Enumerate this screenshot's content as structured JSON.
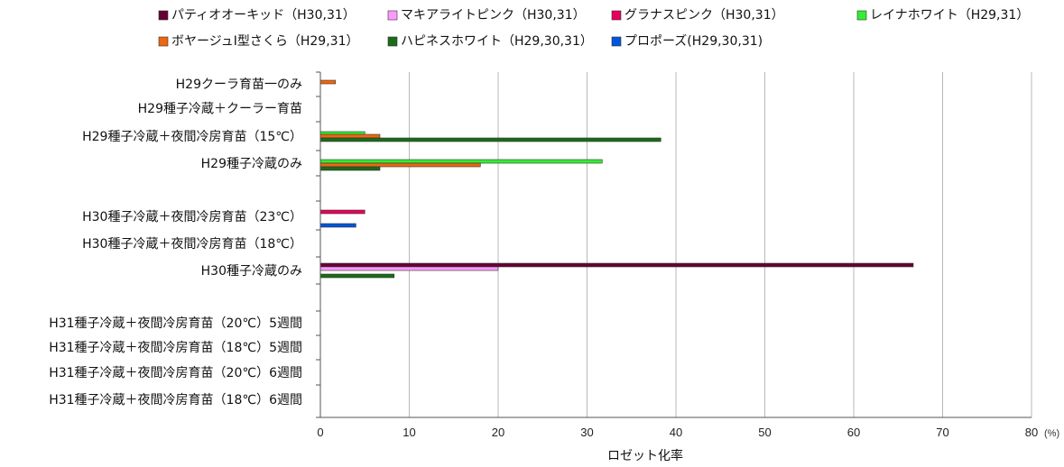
{
  "chart_data": {
    "type": "bar",
    "orientation": "horizontal",
    "categories": [
      "H29クーラ育苗一のみ",
      "H29種子冷蔵＋クーラー育苗",
      "H29種子冷蔵＋夜間冷房育苗（15℃）",
      "H29種子冷蔵のみ",
      "",
      "H30種子冷蔵＋夜間冷房育苗（23℃）",
      "H30種子冷蔵＋夜間冷房育苗（18℃）",
      "H30種子冷蔵のみ",
      "",
      "H31種子冷蔵＋夜間冷房育苗（20℃）5週間",
      "H31種子冷蔵＋夜間冷房育苗（18℃）5週間",
      "H31種子冷蔵＋夜間冷房育苗（20℃）6週間",
      "H31種子冷蔵＋夜間冷房育苗（18℃）6週間"
    ],
    "series": [
      {
        "name": "パティオオーキッド（H30,31）",
        "color": "#660033",
        "values": [
          null,
          null,
          null,
          null,
          null,
          0,
          0,
          66.7,
          null,
          0,
          0,
          0,
          0
        ]
      },
      {
        "name": "マキアライトピンク（H30,31）",
        "color": "#ff99ff",
        "values": [
          null,
          null,
          null,
          null,
          null,
          0,
          0,
          20.0,
          null,
          0,
          0,
          0,
          0
        ]
      },
      {
        "name": "グラナスピンク（H30,31）",
        "color": "#e8005a",
        "values": [
          null,
          null,
          null,
          null,
          null,
          5.0,
          0,
          0,
          null,
          0,
          0,
          0,
          0
        ]
      },
      {
        "name": "レイナホワイト（H29,31）",
        "color": "#33ee33",
        "values": [
          0,
          0,
          5.0,
          31.7,
          null,
          null,
          null,
          null,
          null,
          0,
          0,
          0,
          0
        ]
      },
      {
        "name": "ボヤージュⅠ型さくら（H29,31）",
        "color": "#ee6611",
        "values": [
          1.7,
          0,
          6.7,
          18.0,
          null,
          null,
          null,
          null,
          null,
          0,
          0,
          0,
          0
        ]
      },
      {
        "name": "ハピネスホワイト（H29,30,31）",
        "color": "#1a6b1a",
        "values": [
          0,
          0,
          38.3,
          6.7,
          null,
          0,
          0,
          8.3,
          null,
          0,
          0,
          0,
          0
        ]
      },
      {
        "name": "プロポーズ(H29,30,31)",
        "color": "#0055dd",
        "values": [
          0,
          0,
          0,
          0,
          null,
          0,
          4.0,
          0,
          null,
          0,
          0,
          0,
          0
        ]
      }
    ],
    "x_ticks": [
      "0",
      "10",
      "20",
      "30",
      "40",
      "50",
      "60",
      "70",
      "80"
    ],
    "x_unit": "(%)",
    "xlabel": "ロゼット化率",
    "xlim": [
      0,
      80
    ],
    "grid": "vertical",
    "legend_position": "top"
  }
}
